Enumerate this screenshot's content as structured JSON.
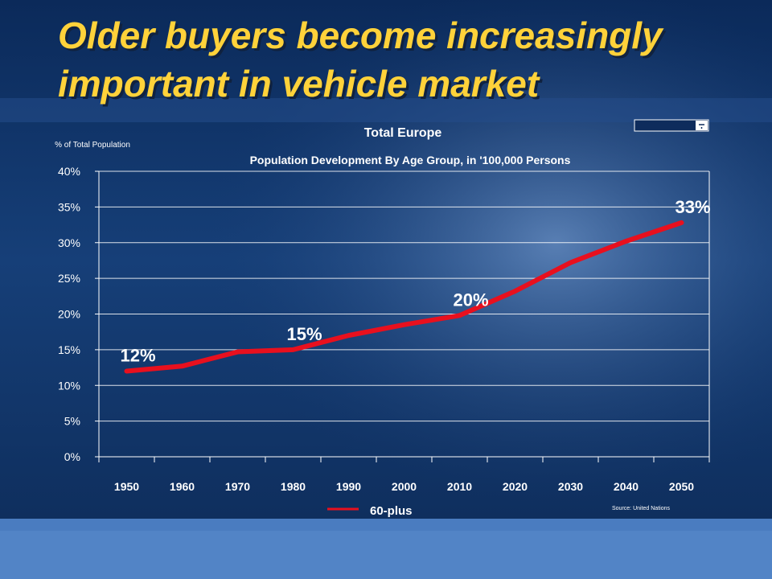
{
  "slide": {
    "title_line1": "Older buyers become increasingly",
    "title_line2": "important in vehicle market"
  },
  "colors": {
    "title": "#ffd23a",
    "series": "#e8101e",
    "background": "#0e2c5c",
    "footer_band": "#4a7cc0"
  },
  "chart_data": {
    "type": "line",
    "title": "Total Europe",
    "subtitle": "Population Development By Age Group, in '100,000 Persons",
    "ylabel": "% of Total Population",
    "xlabel": "",
    "x": [
      "1950",
      "1960",
      "1970",
      "1980",
      "1990",
      "2000",
      "2010",
      "2020",
      "2030",
      "2040",
      "2050"
    ],
    "ylim": [
      0,
      40
    ],
    "yticks": [
      "0%",
      "5%",
      "10%",
      "15%",
      "20%",
      "25%",
      "30%",
      "35%",
      "40%"
    ],
    "grid": true,
    "series": [
      {
        "name": "60-plus",
        "values": [
          12,
          12.7,
          14.7,
          15,
          17,
          18.5,
          19.8,
          23.2,
          27.2,
          30.2,
          32.8
        ]
      }
    ],
    "annotations": [
      {
        "index": 0,
        "text": "12%"
      },
      {
        "index": 3,
        "text": "15%"
      },
      {
        "index": 6,
        "text": "20%"
      },
      {
        "index": 10,
        "text": "33%"
      }
    ],
    "legend": "bottom-center",
    "source": "Source: United Nations"
  }
}
